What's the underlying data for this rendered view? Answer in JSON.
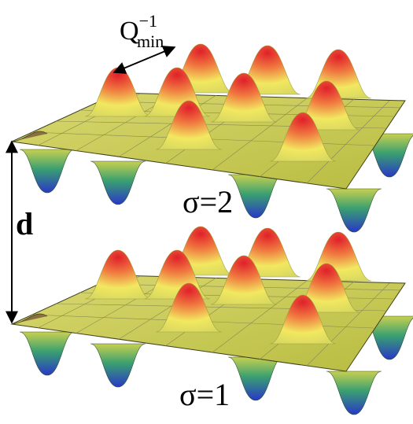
{
  "labels": {
    "q_base": "Q",
    "q_sub": "min",
    "q_sup": "−1",
    "sigma_top": "σ=2",
    "distance": "d",
    "sigma_bottom": "σ=1"
  }
}
